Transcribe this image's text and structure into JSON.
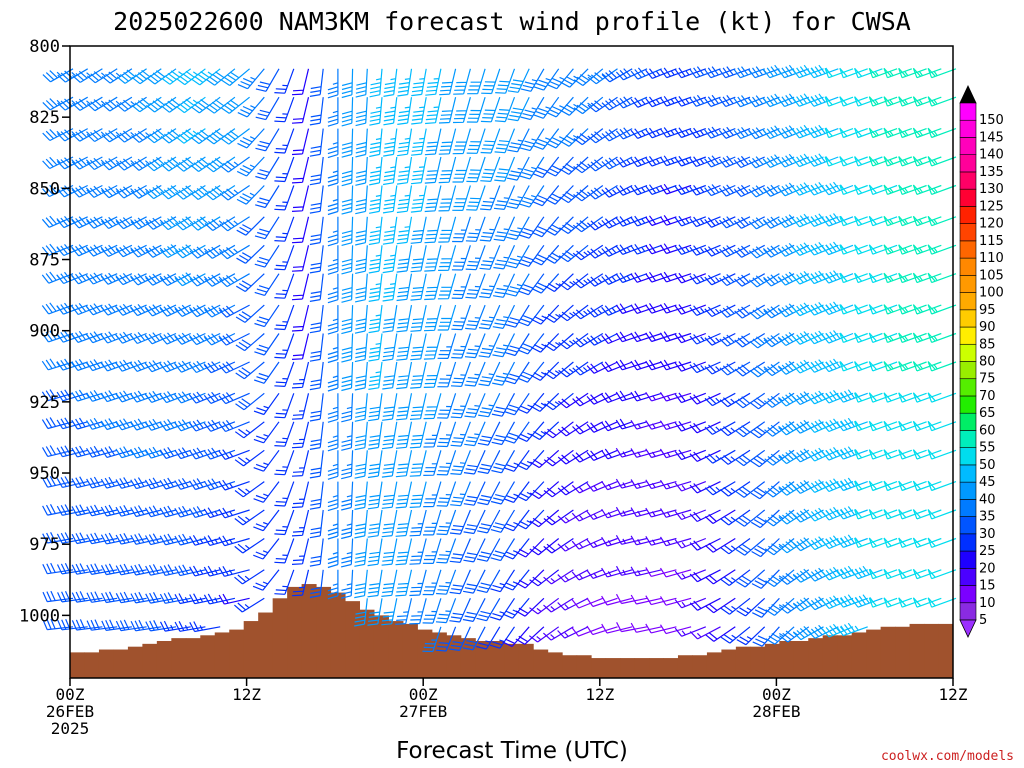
{
  "chart_data": {
    "type": "wind-profile",
    "title": "2025022600 NAM3KM forecast wind profile (kt) for CWSA",
    "xlabel": "Forecast Time (UTC)",
    "credit": "coolwx.com/models",
    "y_axis": {
      "ticks": [
        "800",
        "825",
        "850",
        "875",
        "900",
        "925",
        "950",
        "975",
        "1000"
      ],
      "range": [
        800,
        1022
      ],
      "inverted": true
    },
    "x_axis": {
      "range_hours": [
        0,
        60
      ],
      "ticks": [
        {
          "hour": 0,
          "line1": "00Z",
          "line2": "26FEB",
          "line3": "2025"
        },
        {
          "hour": 12,
          "line1": "12Z",
          "line2": "",
          "line3": ""
        },
        {
          "hour": 24,
          "line1": "00Z",
          "line2": "27FEB",
          "line3": ""
        },
        {
          "hour": 36,
          "line1": "12Z",
          "line2": "",
          "line3": ""
        },
        {
          "hour": 48,
          "line1": "00Z",
          "line2": "28FEB",
          "line3": ""
        },
        {
          "hour": 60,
          "line1": "12Z",
          "line2": "",
          "line3": ""
        }
      ]
    },
    "levels_mb": [
      808,
      818,
      829,
      839,
      849,
      860,
      870,
      880,
      891,
      901,
      911,
      922,
      932,
      942,
      953,
      963,
      973,
      984,
      994,
      1004,
      1014
    ],
    "hours": [
      0,
      1,
      2,
      3,
      4,
      5,
      6,
      7,
      8,
      9,
      10,
      11,
      12,
      13,
      14,
      15,
      16,
      17,
      18,
      19,
      20,
      21,
      22,
      23,
      24,
      25,
      26,
      27,
      28,
      29,
      30,
      31,
      32,
      33,
      34,
      35,
      36,
      37,
      38,
      39,
      40,
      41,
      42,
      43,
      44,
      45,
      46,
      47,
      48,
      49,
      50,
      51,
      52,
      53,
      54,
      55,
      56,
      57,
      58,
      59,
      60
    ],
    "surface_pressure_mb": [
      1013,
      1013,
      1012,
      1012,
      1011,
      1010,
      1009,
      1008,
      1008,
      1007,
      1006,
      1005,
      1002,
      999,
      994,
      990,
      989,
      990,
      992,
      995,
      998,
      1000,
      1002,
      1003,
      1005,
      1006,
      1007,
      1008,
      1009,
      1009,
      1010,
      1010,
      1012,
      1013,
      1014,
      1014,
      1015,
      1015,
      1015,
      1015,
      1015,
      1015,
      1014,
      1014,
      1013,
      1012,
      1011,
      1011,
      1010,
      1009,
      1009,
      1008,
      1007,
      1007,
      1006,
      1005,
      1004,
      1004,
      1003,
      1003,
      1003
    ],
    "wind_key": {
      "note": "speed kt by hour-block; direction deg (from) by hour-block",
      "speed_hours": [
        0,
        6,
        9,
        12,
        14,
        16,
        18,
        21,
        24,
        27,
        30,
        33,
        36,
        39,
        42,
        45,
        48,
        51,
        54,
        57,
        60
      ],
      "speed_upper": [
        35,
        38,
        45,
        40,
        30,
        20,
        35,
        45,
        45,
        40,
        40,
        35,
        35,
        30,
        25,
        30,
        35,
        45,
        50,
        55,
        55
      ],
      "speed_lower": [
        30,
        30,
        25,
        20,
        25,
        25,
        35,
        40,
        35,
        30,
        25,
        15,
        10,
        10,
        10,
        20,
        30,
        40,
        45,
        50,
        50
      ],
      "dir_hours": [
        0,
        12,
        15,
        18,
        21,
        24,
        30,
        33,
        36,
        39,
        42,
        45,
        48,
        51,
        54,
        57,
        60
      ],
      "dir_upper": [
        240,
        230,
        200,
        180,
        185,
        190,
        200,
        215,
        230,
        245,
        250,
        250,
        250,
        250,
        250,
        250,
        250
      ],
      "dir_lower": [
        265,
        260,
        200,
        180,
        190,
        195,
        215,
        235,
        250,
        260,
        255,
        235,
        220,
        240,
        250,
        250,
        250
      ]
    },
    "colorbar": {
      "labels": [
        "5",
        "10",
        "15",
        "20",
        "25",
        "30",
        "35",
        "40",
        "45",
        "50",
        "55",
        "60",
        "65",
        "70",
        "75",
        "80",
        "85",
        "90",
        "95",
        "100",
        "105",
        "110",
        "115",
        "120",
        "125",
        "130",
        "135",
        "140",
        "145",
        "150"
      ],
      "colors": [
        "#8a2be2",
        "#7b00ff",
        "#4b00ff",
        "#1e00ff",
        "#0030ff",
        "#0055ff",
        "#007bff",
        "#0099ff",
        "#00bbff",
        "#00ddee",
        "#00eebb",
        "#00ee66",
        "#22ee00",
        "#55ee00",
        "#99ee00",
        "#ccff00",
        "#ffee00",
        "#ffcc00",
        "#ffaa00",
        "#ff9900",
        "#ff8800",
        "#ff6600",
        "#ff4400",
        "#ff2200",
        "#ff0033",
        "#ff0066",
        "#ff0099",
        "#ff00bb",
        "#ff00dd",
        "#ff00ff"
      ],
      "below_color": "#9b30ff",
      "above_color": "#000000"
    },
    "terrain_color": "#a0522d"
  }
}
